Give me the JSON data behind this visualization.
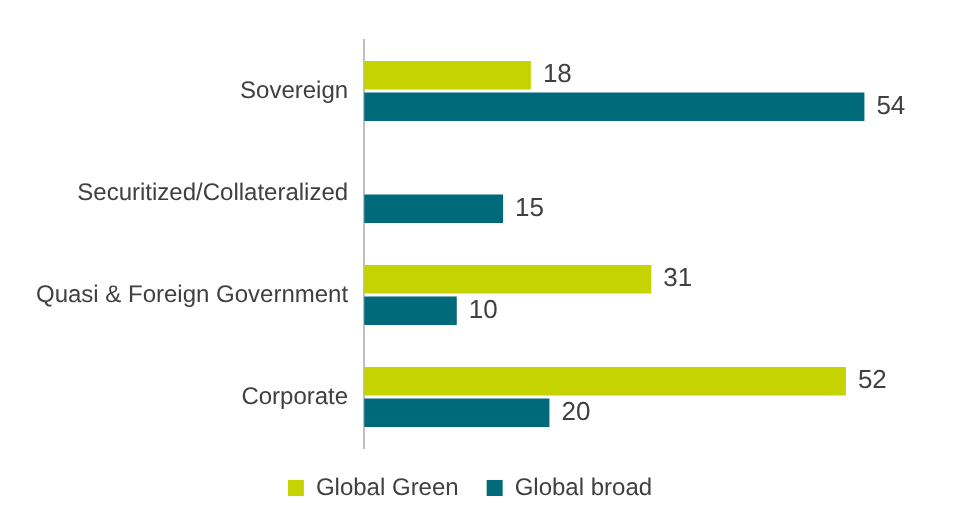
{
  "chart_data": {
    "type": "bar",
    "orientation": "horizontal",
    "categories": [
      "Sovereign",
      "Securitized/Collateralized",
      "Quasi & Foreign Government",
      "Corporate"
    ],
    "series": [
      {
        "name": "Global Green",
        "color": "#c5d400",
        "values": [
          18,
          null,
          31,
          52
        ]
      },
      {
        "name": "Global broad",
        "color": "#00697a",
        "values": [
          54,
          15,
          10,
          20
        ]
      }
    ],
    "data_labels": true,
    "legend": "bottom",
    "grid": false,
    "tick_labels": "y"
  }
}
